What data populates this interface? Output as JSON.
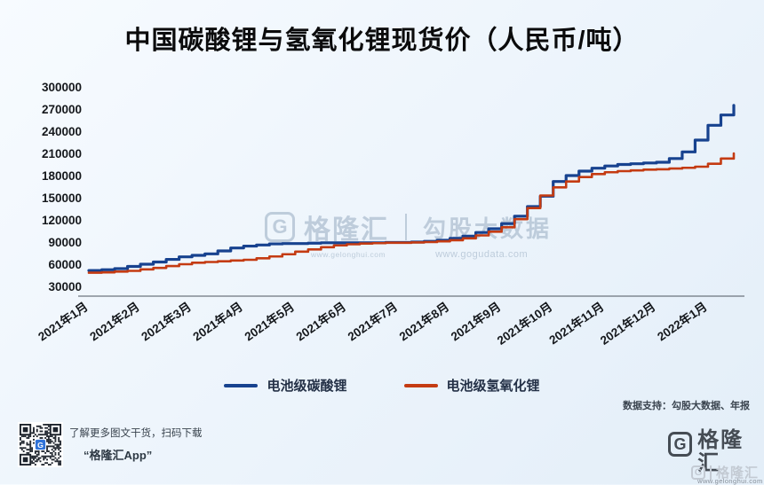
{
  "title": "中国碳酸锂与氢氧化锂现货价（人民币/吨）",
  "chart_data": {
    "type": "line",
    "x_labels": [
      "2021年1月",
      "2021年2月",
      "2021年3月",
      "2021年4月",
      "2021年5月",
      "2021年6月",
      "2021年7月",
      "2021年8月",
      "2021年9月",
      "2021年10月",
      "2021年11月",
      "2021年12月",
      "2022年1月"
    ],
    "points_per_month": 4,
    "ylim": [
      30000,
      300000
    ],
    "y_ticks": [
      30000,
      60000,
      90000,
      120000,
      150000,
      180000,
      210000,
      240000,
      270000,
      300000
    ],
    "grid": false,
    "legend_position": "bottom",
    "series": [
      {
        "name": "电池级碳酸锂",
        "color": "#17428f",
        "values": [
          51500,
          52500,
          54000,
          57000,
          60000,
          63000,
          66500,
          70000,
          72000,
          74000,
          78000,
          82000,
          84500,
          86000,
          87500,
          88000,
          88000,
          88500,
          89000,
          89000,
          89000,
          89000,
          89000,
          89500,
          89500,
          90000,
          91000,
          92500,
          95000,
          98000,
          103000,
          108000,
          115000,
          125000,
          138000,
          152000,
          172000,
          180000,
          186000,
          190000,
          193000,
          195000,
          196000,
          197000,
          198000,
          203000,
          212000,
          228000,
          248000,
          262000,
          275000
        ]
      },
      {
        "name": "电池级氢氧化锂",
        "color": "#c43b12",
        "values": [
          48500,
          49000,
          50000,
          51000,
          53000,
          55000,
          57500,
          60000,
          62000,
          63000,
          64000,
          65000,
          66000,
          68000,
          70500,
          73500,
          77000,
          80000,
          83000,
          85500,
          87000,
          88000,
          88500,
          89000,
          89000,
          89500,
          90000,
          91000,
          92500,
          95000,
          99000,
          104000,
          110000,
          121000,
          136000,
          153000,
          164000,
          172000,
          178000,
          182000,
          184500,
          186000,
          187000,
          188000,
          188500,
          189500,
          190500,
          192000,
          196000,
          203000,
          210000
        ]
      }
    ]
  },
  "watermark": {
    "g": "G",
    "brand": "格隆汇",
    "partner": "勾股大数据",
    "brand_url": "www.gelonghui.com",
    "partner_url": "www.gogudata.com"
  },
  "data_note": "数据支持：勾股大数据、年报",
  "footer": {
    "qr_caption_line1": "了解更多图文干货，扫码下载",
    "qr_caption_line2": "“格隆汇App”",
    "logo_g": "G",
    "logo_text": "格隆汇",
    "logo_url": "www.gelonghui.com",
    "corner_logo_g": "G",
    "corner_logo_text": "格隆汇"
  }
}
